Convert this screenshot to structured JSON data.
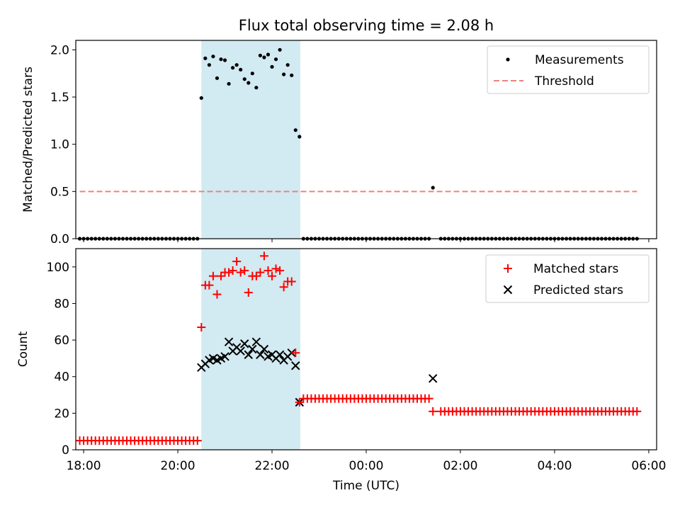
{
  "figure": {
    "title": "Flux total observing time = 2.08 h",
    "xlabel": "Time (UTC)"
  },
  "colors": {
    "measurements": "#000000",
    "threshold": "#f08080",
    "matched": "#ff0000",
    "predicted": "#000000",
    "shaded_region": "#add8e6"
  },
  "chart_data": [
    {
      "type": "scatter",
      "ylabel": "Matched/Predicted stars",
      "xlim": [
        "17:50",
        "06:10"
      ],
      "ylim": [
        0,
        2.1
      ],
      "yticks": [
        0.0,
        0.5,
        1.0,
        1.5,
        2.0
      ],
      "ytick_labels": [
        "0.0",
        "0.5",
        "1.0",
        "1.5",
        "2.0"
      ],
      "xticks": [
        "18:00",
        "20:00",
        "22:00",
        "00:00",
        "02:00",
        "04:00",
        "06:00"
      ],
      "grid": false,
      "legend_position": "top-right",
      "shaded_span": [
        "20:30",
        "22:36"
      ],
      "series": [
        {
          "name": "Measurements",
          "marker": "dot",
          "note": "points are y=0 from 17:55 to 20:25, 22:40 to 01:20 and 01:35 to 05:45",
          "zero_ranges": [
            [
              "17:55",
              "20:25"
            ],
            [
              "22:40",
              "01:20"
            ],
            [
              "01:35",
              "05:45"
            ]
          ],
          "zero_step_minutes": 5,
          "points": [
            [
              "20:30",
              1.49
            ],
            [
              "20:35",
              1.91
            ],
            [
              "20:40",
              1.84
            ],
            [
              "20:45",
              1.93
            ],
            [
              "20:50",
              1.7
            ],
            [
              "20:55",
              1.9
            ],
            [
              "21:00",
              1.89
            ],
            [
              "21:05",
              1.64
            ],
            [
              "21:10",
              1.81
            ],
            [
              "21:15",
              1.84
            ],
            [
              "21:20",
              1.79
            ],
            [
              "21:25",
              1.69
            ],
            [
              "21:30",
              1.65
            ],
            [
              "21:35",
              1.75
            ],
            [
              "21:40",
              1.6
            ],
            [
              "21:45",
              1.94
            ],
            [
              "21:50",
              1.92
            ],
            [
              "21:55",
              1.95
            ],
            [
              "22:00",
              1.82
            ],
            [
              "22:05",
              1.9
            ],
            [
              "22:10",
              2.0
            ],
            [
              "22:15",
              1.74
            ],
            [
              "22:20",
              1.84
            ],
            [
              "22:25",
              1.73
            ],
            [
              "22:30",
              1.15
            ],
            [
              "22:35",
              1.08
            ],
            [
              "01:25",
              0.54
            ]
          ]
        },
        {
          "name": "Threshold",
          "style": "dashed-line",
          "value": 0.5,
          "x_range": [
            "17:55",
            "05:45"
          ]
        }
      ]
    },
    {
      "type": "scatter",
      "ylabel": "Count",
      "xlim": [
        "17:50",
        "06:10"
      ],
      "ylim": [
        0,
        110
      ],
      "yticks": [
        0,
        20,
        40,
        60,
        80,
        100
      ],
      "ytick_labels": [
        "0",
        "20",
        "40",
        "60",
        "80",
        "100"
      ],
      "xticks": [
        "18:00",
        "20:00",
        "22:00",
        "00:00",
        "02:00",
        "04:00",
        "06:00"
      ],
      "grid": false,
      "legend_position": "top-right",
      "shaded_span": [
        "20:30",
        "22:36"
      ],
      "series": [
        {
          "name": "Matched stars",
          "marker": "plus",
          "constant_ranges": [
            {
              "from": "17:55",
              "to": "20:25",
              "value": 5
            },
            {
              "from": "22:40",
              "to": "01:20",
              "value": 28
            },
            {
              "from": "01:35",
              "to": "05:45",
              "value": 21
            }
          ],
          "step_minutes": 5,
          "points": [
            [
              "20:30",
              67
            ],
            [
              "20:35",
              90
            ],
            [
              "20:40",
              90
            ],
            [
              "20:45",
              95
            ],
            [
              "20:50",
              85
            ],
            [
              "20:55",
              95
            ],
            [
              "21:00",
              97
            ],
            [
              "21:05",
              97
            ],
            [
              "21:10",
              98
            ],
            [
              "21:15",
              103
            ],
            [
              "21:20",
              97
            ],
            [
              "21:25",
              98
            ],
            [
              "21:30",
              86
            ],
            [
              "21:35",
              95
            ],
            [
              "21:40",
              95
            ],
            [
              "21:45",
              97
            ],
            [
              "21:50",
              106
            ],
            [
              "21:55",
              98
            ],
            [
              "22:00",
              95
            ],
            [
              "22:05",
              99
            ],
            [
              "22:10",
              98
            ],
            [
              "22:15",
              89
            ],
            [
              "22:20",
              92
            ],
            [
              "22:25",
              92
            ],
            [
              "22:30",
              53
            ],
            [
              "22:35",
              26
            ],
            [
              "01:25",
              21
            ]
          ]
        },
        {
          "name": "Predicted stars",
          "marker": "x",
          "points": [
            [
              "20:30",
              45
            ],
            [
              "20:35",
              47
            ],
            [
              "20:40",
              49
            ],
            [
              "20:45",
              50
            ],
            [
              "20:50",
              49
            ],
            [
              "20:55",
              50
            ],
            [
              "21:00",
              51
            ],
            [
              "21:05",
              59
            ],
            [
              "21:10",
              54
            ],
            [
              "21:15",
              56
            ],
            [
              "21:20",
              54
            ],
            [
              "21:25",
              58
            ],
            [
              "21:30",
              52
            ],
            [
              "21:35",
              55
            ],
            [
              "21:40",
              59
            ],
            [
              "21:45",
              52
            ],
            [
              "21:50",
              55
            ],
            [
              "21:55",
              51
            ],
            [
              "22:00",
              52
            ],
            [
              "22:05",
              50
            ],
            [
              "22:10",
              52
            ],
            [
              "22:15",
              49
            ],
            [
              "22:20",
              51
            ],
            [
              "22:25",
              53
            ],
            [
              "22:30",
              46
            ],
            [
              "22:35",
              26
            ],
            [
              "01:25",
              39
            ]
          ]
        }
      ]
    }
  ]
}
